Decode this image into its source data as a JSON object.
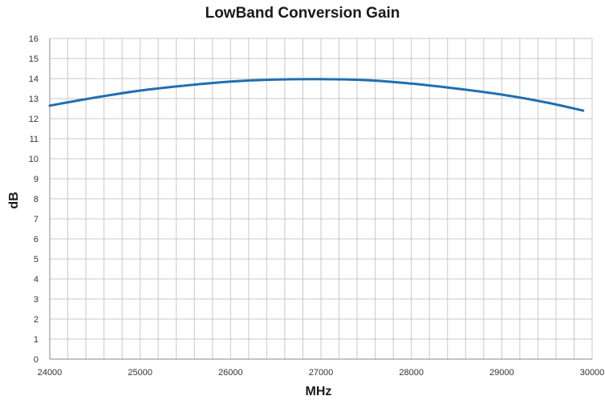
{
  "chart_data": {
    "type": "line",
    "title": "LowBand Conversion Gain",
    "xlabel": "MHz",
    "ylabel": "dB",
    "xlim": [
      24000,
      30000
    ],
    "ylim": [
      0,
      16
    ],
    "x_ticks": [
      24000,
      25000,
      26000,
      27000,
      28000,
      29000,
      30000
    ],
    "y_ticks": [
      0,
      1,
      2,
      3,
      4,
      5,
      6,
      7,
      8,
      9,
      10,
      11,
      12,
      13,
      14,
      15,
      16
    ],
    "x_minor_step": 200,
    "grid": true,
    "legend": "none",
    "series": [
      {
        "color": "#1f6fb2",
        "x": [
          24000,
          24500,
          25000,
          25500,
          26000,
          26500,
          27000,
          27500,
          28000,
          28500,
          29000,
          29500,
          29900
        ],
        "y": [
          12.65,
          13.05,
          13.4,
          13.65,
          13.85,
          13.95,
          13.97,
          13.92,
          13.75,
          13.5,
          13.2,
          12.8,
          12.4
        ]
      }
    ]
  }
}
